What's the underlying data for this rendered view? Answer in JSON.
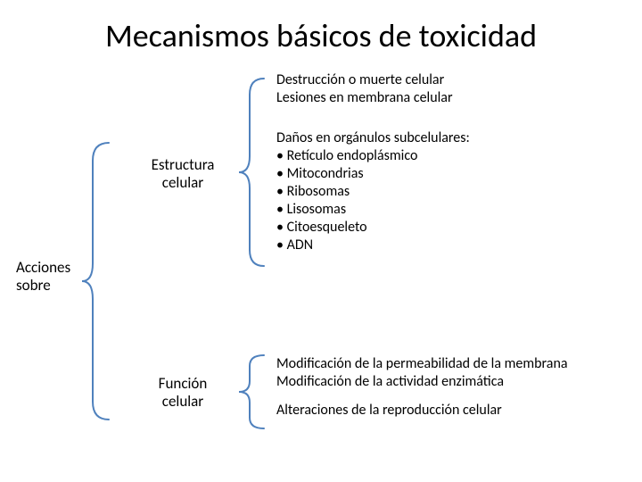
{
  "title": "Mecanismos básicos de toxicidad",
  "root": {
    "line1": "Acciones",
    "line2": "sobre"
  },
  "mid": {
    "estructura": {
      "line1": "Estructura",
      "line2": "celular"
    },
    "funcion": {
      "line1": "Función",
      "line2": "celular"
    }
  },
  "leaves": {
    "destruccion": {
      "line1": "Destrucción o muerte celular",
      "line2": "Lesiones en membrana celular"
    },
    "danos": {
      "header": "Daños en orgánulos subcelulares:",
      "items": [
        "Retículo endoplásmico",
        "Mitocondrias",
        "Ribosomas",
        "Lisosomas",
        "Citoesqueleto",
        "ADN"
      ]
    },
    "modificacion": {
      "line1": "Modificación de la permeabilidad de la membrana",
      "line2": "Modificación de la actividad enzimática"
    },
    "alteraciones": "Alteraciones de la reproducción celular"
  },
  "colors": {
    "brace": "#4f81bd",
    "text": "#000000",
    "background": "#ffffff"
  },
  "fontsizes": {
    "title": 36,
    "body": 17,
    "leaf": 16
  }
}
